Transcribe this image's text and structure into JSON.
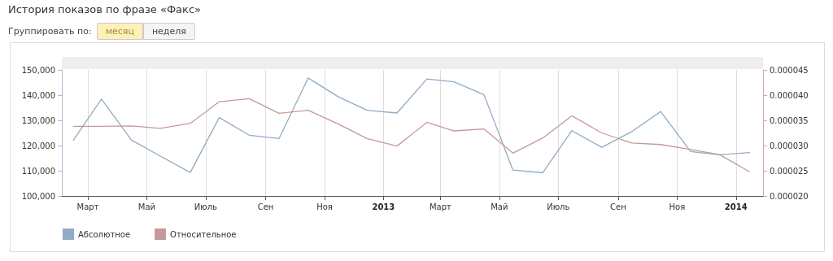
{
  "chart_data": {
    "type": "line",
    "title": "История показов по фразе «Факс»",
    "annotations": [
      "Группировать по:",
      "месяц",
      "неделя"
    ],
    "x": [
      "2012-02-15",
      "2012-03-15",
      "2012-04-15",
      "2012-05-15",
      "2012-06-15",
      "2012-07-15",
      "2012-08-15",
      "2012-09-15",
      "2012-10-15",
      "2012-11-15",
      "2012-12-15",
      "2013-01-15",
      "2013-02-15",
      "2013-03-15",
      "2013-04-15",
      "2013-05-15",
      "2013-06-15",
      "2013-07-15",
      "2013-08-15",
      "2013-09-15",
      "2013-10-15",
      "2013-11-15",
      "2013-12-15",
      "2014-01-15"
    ],
    "series": [
      {
        "name": "Абсолютное",
        "color": "#92abc4",
        "values": [
          122100,
          138400,
          122200,
          115800,
          109300,
          131100,
          124100,
          122800,
          146800,
          139400,
          134000,
          132900,
          146400,
          145300,
          140200,
          110300,
          109200,
          125900,
          119300,
          125500,
          133500,
          117600,
          116300,
          117200
        ]
      },
      {
        "name": "Относительное",
        "color": "#c49a98",
        "axis": "y2",
        "values": [
          3.38e-05,
          3.38e-05,
          3.39e-05,
          3.34e-05,
          3.44e-05,
          3.87e-05,
          3.93e-05,
          3.64e-05,
          3.7e-05,
          3.43e-05,
          3.14e-05,
          2.99e-05,
          3.46e-05,
          3.29e-05,
          3.33e-05,
          2.85e-05,
          3.15e-05,
          3.59e-05,
          3.25e-05,
          3.05e-05,
          3.02e-05,
          2.92e-05,
          2.82e-05,
          2.48e-05
        ]
      }
    ],
    "xlim": [
      "2012-02-03",
      "2014-01-29"
    ],
    "xticks": [
      {
        "value": "2012-03-01",
        "label": "Март"
      },
      {
        "value": "2012-05-01",
        "label": "Май"
      },
      {
        "value": "2012-07-01",
        "label": "Июль"
      },
      {
        "value": "2012-09-01",
        "label": "Сен"
      },
      {
        "value": "2012-11-01",
        "label": "Ноя"
      },
      {
        "value": "2013-01-01",
        "label": "2013"
      },
      {
        "value": "2013-03-01",
        "label": "Март"
      },
      {
        "value": "2013-05-01",
        "label": "Май"
      },
      {
        "value": "2013-07-01",
        "label": "Июль"
      },
      {
        "value": "2013-09-01",
        "label": "Сен"
      },
      {
        "value": "2013-11-01",
        "label": "Ноя"
      },
      {
        "value": "2014-01-01",
        "label": "2014"
      }
    ],
    "ylim": [
      100000,
      150000
    ],
    "yticks": [
      {
        "value": 100000,
        "label": "100,000"
      },
      {
        "value": 110000,
        "label": "110,000"
      },
      {
        "value": 120000,
        "label": "120,000"
      },
      {
        "value": 130000,
        "label": "130,000"
      },
      {
        "value": 140000,
        "label": "140,000"
      },
      {
        "value": 150000,
        "label": "150,000"
      }
    ],
    "y2lim": [
      2e-05,
      4.5e-05
    ],
    "y2ticks": [
      {
        "value": 2e-05,
        "label": "0.000020"
      },
      {
        "value": 2.5e-05,
        "label": "0.000025"
      },
      {
        "value": 3e-05,
        "label": "0.000030"
      },
      {
        "value": 3.5e-05,
        "label": "0.000035"
      },
      {
        "value": 4e-05,
        "label": "0.000040"
      },
      {
        "value": 4.5e-05,
        "label": "0.000045"
      }
    ],
    "grid": "x",
    "legend": "bottom left",
    "marker": "none",
    "line_style": "solid"
  }
}
